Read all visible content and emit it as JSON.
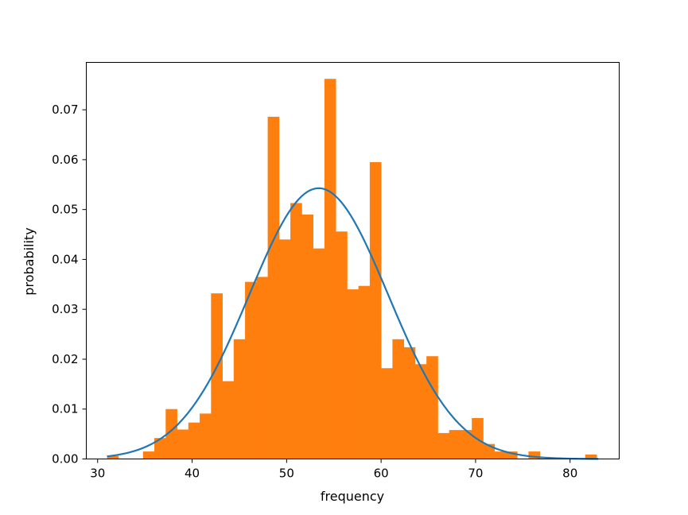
{
  "chart_data": {
    "type": "bar",
    "title": "",
    "xlabel": "frequency",
    "ylabel": "probability",
    "xlim": [
      28.8,
      85.2
    ],
    "ylim": [
      0.0,
      0.0795
    ],
    "xticks": [
      30,
      40,
      50,
      60,
      70,
      80
    ],
    "xtick_labels": [
      "30",
      "40",
      "50",
      "60",
      "70",
      "80"
    ],
    "yticks": [
      0.0,
      0.01,
      0.02,
      0.03,
      0.04,
      0.05,
      0.06,
      0.07
    ],
    "ytick_labels": [
      "0.00",
      "0.01",
      "0.02",
      "0.03",
      "0.04",
      "0.05",
      "0.06",
      "0.07"
    ],
    "grid": false,
    "histogram": {
      "color": "#ff7f0e",
      "bins": [
        {
          "x0": 31.0,
          "x1": 32.2,
          "y": 0.0006
        },
        {
          "x0": 34.8,
          "x1": 36.0,
          "y": 0.0015
        },
        {
          "x0": 36.0,
          "x1": 37.2,
          "y": 0.0042
        },
        {
          "x0": 37.2,
          "x1": 38.4,
          "y": 0.01
        },
        {
          "x0": 38.4,
          "x1": 39.6,
          "y": 0.0059
        },
        {
          "x0": 39.6,
          "x1": 40.8,
          "y": 0.0073
        },
        {
          "x0": 40.8,
          "x1": 42.0,
          "y": 0.0091
        },
        {
          "x0": 42.0,
          "x1": 43.2,
          "y": 0.0332
        },
        {
          "x0": 43.2,
          "x1": 44.4,
          "y": 0.0156
        },
        {
          "x0": 44.4,
          "x1": 45.6,
          "y": 0.024
        },
        {
          "x0": 45.6,
          "x1": 46.8,
          "y": 0.0355
        },
        {
          "x0": 46.8,
          "x1": 48.0,
          "y": 0.0365
        },
        {
          "x0": 48.0,
          "x1": 49.2,
          "y": 0.0686
        },
        {
          "x0": 49.2,
          "x1": 50.4,
          "y": 0.044
        },
        {
          "x0": 50.4,
          "x1": 51.6,
          "y": 0.0513
        },
        {
          "x0": 51.6,
          "x1": 52.8,
          "y": 0.049
        },
        {
          "x0": 52.8,
          "x1": 54.0,
          "y": 0.0422
        },
        {
          "x0": 54.0,
          "x1": 55.2,
          "y": 0.0762
        },
        {
          "x0": 55.2,
          "x1": 56.4,
          "y": 0.0456
        },
        {
          "x0": 56.4,
          "x1": 57.6,
          "y": 0.034
        },
        {
          "x0": 57.6,
          "x1": 58.8,
          "y": 0.0347
        },
        {
          "x0": 58.8,
          "x1": 60.0,
          "y": 0.0595
        },
        {
          "x0": 60.0,
          "x1": 61.2,
          "y": 0.0182
        },
        {
          "x0": 61.2,
          "x1": 62.4,
          "y": 0.024
        },
        {
          "x0": 62.4,
          "x1": 63.6,
          "y": 0.0224
        },
        {
          "x0": 63.6,
          "x1": 64.8,
          "y": 0.019
        },
        {
          "x0": 64.8,
          "x1": 66.0,
          "y": 0.0206
        },
        {
          "x0": 66.0,
          "x1": 67.2,
          "y": 0.0052
        },
        {
          "x0": 67.2,
          "x1": 68.4,
          "y": 0.0058
        },
        {
          "x0": 68.4,
          "x1": 69.6,
          "y": 0.0058
        },
        {
          "x0": 69.6,
          "x1": 70.8,
          "y": 0.0082
        },
        {
          "x0": 70.8,
          "x1": 72.0,
          "y": 0.003
        },
        {
          "x0": 72.0,
          "x1": 73.2,
          "y": 0.0015
        },
        {
          "x0": 73.2,
          "x1": 74.4,
          "y": 0.0015
        },
        {
          "x0": 75.6,
          "x1": 76.8,
          "y": 0.0015
        },
        {
          "x0": 81.6,
          "x1": 82.8,
          "y": 0.0009
        }
      ]
    },
    "curve": {
      "type": "normal_pdf",
      "color": "#1f77b4",
      "mean": 53.4,
      "std": 7.35,
      "x_range": [
        31.0,
        83.0
      ]
    }
  }
}
